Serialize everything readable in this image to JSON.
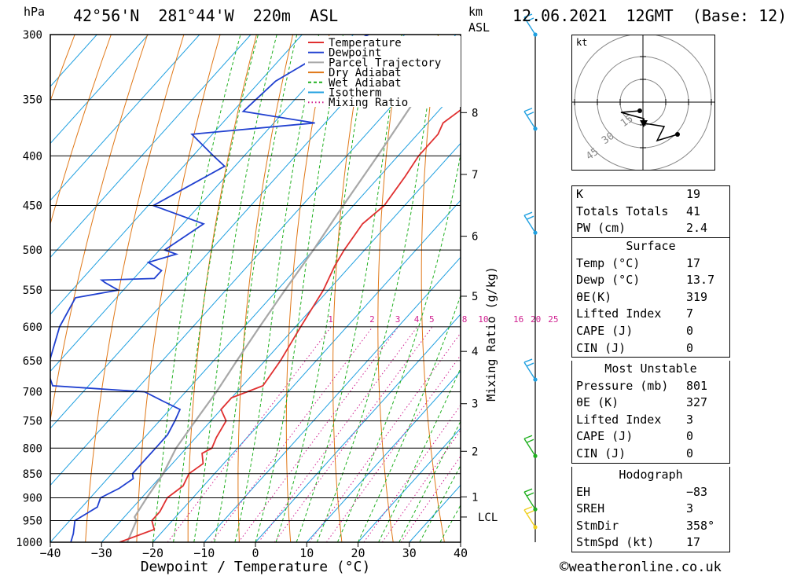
{
  "header": {
    "location": "42°56'N  281°44'W  220m  ASL",
    "datetime": "12.06.2021  12GMT  (Base: 12)",
    "unit_left": "hPa",
    "unit_right_1": "km",
    "unit_right_2": "ASL"
  },
  "footer": {
    "copyright_symbol": "©",
    "site": "weatheronline.co.uk"
  },
  "legend": {
    "items": [
      {
        "label": "Temperature",
        "color": "#e03030",
        "style": "solid"
      },
      {
        "label": "Dewpoint",
        "color": "#2040d0",
        "style": "solid"
      },
      {
        "label": "Parcel Trajectory",
        "color": "#a8a8a8",
        "style": "solid"
      },
      {
        "label": "Dry Adiabat",
        "color": "#e07818",
        "style": "solid"
      },
      {
        "label": "Wet Adiabat",
        "color": "#20b020",
        "style": "dashed"
      },
      {
        "label": "Isotherm",
        "color": "#20a0e0",
        "style": "solid"
      },
      {
        "label": "Mixing Ratio",
        "color": "#d02090",
        "style": "dotted"
      }
    ]
  },
  "chart_data": {
    "type": "skew-t",
    "xlabel": "Dewpoint / Temperature (°C)",
    "ylabel_left": "hPa",
    "ylabel_right": "Mixing Ratio (g/kg)",
    "x_ticks": [
      -40,
      -30,
      -20,
      -10,
      0,
      10,
      20,
      30,
      40
    ],
    "x_tick_labels": [
      "−40",
      "−30",
      "−20",
      "−10",
      "0",
      "10",
      "20",
      "30",
      "40"
    ],
    "xlim": [
      -40,
      40
    ],
    "pressure_ticks": [
      1000,
      950,
      900,
      850,
      800,
      750,
      700,
      650,
      600,
      550,
      500,
      450,
      400,
      350,
      300
    ],
    "ylim_hpa": [
      1000,
      300
    ],
    "log_pressure_axis": true,
    "km_ticks": [
      {
        "p": 898,
        "label": "1"
      },
      {
        "p": 806,
        "label": "2"
      },
      {
        "p": 720,
        "label": "3"
      },
      {
        "p": 636,
        "label": "4"
      },
      {
        "p": 558,
        "label": "5"
      },
      {
        "p": 484,
        "label": "6"
      },
      {
        "p": 418,
        "label": "7"
      },
      {
        "p": 361,
        "label": "8"
      }
    ],
    "lcl": {
      "p": 942,
      "label": "LCL"
    },
    "mixing_ratio_labels": [
      "1",
      "2",
      "3",
      "4",
      "5",
      "8",
      "10",
      "16",
      "20",
      "25"
    ],
    "temperature_profile": [
      {
        "p": 1000,
        "t": -26.5
      },
      {
        "p": 990,
        "t": -25
      },
      {
        "p": 970,
        "t": -22
      },
      {
        "p": 950,
        "t": -24
      },
      {
        "p": 930,
        "t": -24
      },
      {
        "p": 900,
        "t": -25
      },
      {
        "p": 875,
        "t": -24
      },
      {
        "p": 850,
        "t": -25
      },
      {
        "p": 830,
        "t": -24
      },
      {
        "p": 810,
        "t": -26
      },
      {
        "p": 800,
        "t": -25
      },
      {
        "p": 780,
        "t": -26
      },
      {
        "p": 750,
        "t": -27
      },
      {
        "p": 730,
        "t": -30
      },
      {
        "p": 710,
        "t": -30
      },
      {
        "p": 700,
        "t": -28
      },
      {
        "p": 690,
        "t": -26
      },
      {
        "p": 650,
        "t": -27
      },
      {
        "p": 600,
        "t": -29
      },
      {
        "p": 550,
        "t": -31
      },
      {
        "p": 520,
        "t": -33
      },
      {
        "p": 500,
        "t": -34
      },
      {
        "p": 470,
        "t": -35
      },
      {
        "p": 450,
        "t": -34
      },
      {
        "p": 420,
        "t": -35
      },
      {
        "p": 400,
        "t": -36
      },
      {
        "p": 380,
        "t": -36
      },
      {
        "p": 370,
        "t": -37
      },
      {
        "p": 360,
        "t": -36
      },
      {
        "p": 350,
        "t": -35
      },
      {
        "p": 330,
        "t": -36
      },
      {
        "p": 300,
        "t": -40
      }
    ],
    "dewpoint_profile": [
      {
        "p": 1000,
        "t": -36
      },
      {
        "p": 980,
        "t": -37
      },
      {
        "p": 950,
        "t": -39
      },
      {
        "p": 920,
        "t": -37
      },
      {
        "p": 900,
        "t": -38
      },
      {
        "p": 880,
        "t": -36
      },
      {
        "p": 860,
        "t": -35
      },
      {
        "p": 850,
        "t": -36
      },
      {
        "p": 820,
        "t": -36
      },
      {
        "p": 800,
        "t": -36
      },
      {
        "p": 775,
        "t": -36
      },
      {
        "p": 750,
        "t": -37
      },
      {
        "p": 730,
        "t": -38
      },
      {
        "p": 715,
        "t": -43
      },
      {
        "p": 700,
        "t": -48
      },
      {
        "p": 690,
        "t": -67
      },
      {
        "p": 670,
        "t": -70
      },
      {
        "p": 650,
        "t": -72
      },
      {
        "p": 600,
        "t": -76
      },
      {
        "p": 560,
        "t": -78
      },
      {
        "p": 550,
        "t": -71
      },
      {
        "p": 540,
        "t": -75
      },
      {
        "p": 537,
        "t": -76
      },
      {
        "p": 535,
        "t": -66
      },
      {
        "p": 525,
        "t": -66
      },
      {
        "p": 515,
        "t": -70
      },
      {
        "p": 505,
        "t": -66
      },
      {
        "p": 500,
        "t": -69
      },
      {
        "p": 470,
        "t": -66
      },
      {
        "p": 450,
        "t": -79
      },
      {
        "p": 410,
        "t": -72
      },
      {
        "p": 400,
        "t": -76
      },
      {
        "p": 380,
        "t": -84
      },
      {
        "p": 370,
        "t": -62
      },
      {
        "p": 360,
        "t": -78
      },
      {
        "p": 335,
        "t": -77
      },
      {
        "p": 320,
        "t": -74
      },
      {
        "p": 300,
        "t": -67
      }
    ],
    "parcel_profile": [
      {
        "p": 1000,
        "t": -25
      },
      {
        "p": 950,
        "t": -27
      },
      {
        "p": 942,
        "t": -28
      },
      {
        "p": 900,
        "t": -29
      },
      {
        "p": 850,
        "t": -30
      },
      {
        "p": 800,
        "t": -32
      },
      {
        "p": 750,
        "t": -33
      },
      {
        "p": 700,
        "t": -34
      },
      {
        "p": 650,
        "t": -35.5
      },
      {
        "p": 600,
        "t": -37
      },
      {
        "p": 550,
        "t": -38.5
      },
      {
        "p": 500,
        "t": -40
      },
      {
        "p": 450,
        "t": -42
      },
      {
        "p": 400,
        "t": -44
      },
      {
        "p": 350,
        "t": -46.5
      },
      {
        "p": 310,
        "t": -49
      }
    ],
    "wind_barbs": [
      {
        "p": 300,
        "color": "#20a0e0"
      },
      {
        "p": 375,
        "color": "#20a0e0"
      },
      {
        "p": 480,
        "color": "#20a0e0"
      },
      {
        "p": 680,
        "color": "#20a0e0"
      },
      {
        "p": 815,
        "color": "#20b020"
      },
      {
        "p": 925,
        "color": "#20b020"
      },
      {
        "p": 965,
        "color": "#f0d020"
      }
    ]
  },
  "hodograph": {
    "unit": "kt",
    "ring_labels": [
      "15",
      "30",
      "45"
    ]
  },
  "indices": {
    "general": [
      {
        "name": "K",
        "value": "19"
      },
      {
        "name": "Totals Totals",
        "value": "41"
      },
      {
        "name": "PW (cm)",
        "value": "2.4"
      }
    ],
    "surface": {
      "title": "Surface",
      "rows": [
        {
          "name": "Temp (°C)",
          "value": "17"
        },
        {
          "name": "Dewp (°C)",
          "value": "13.7"
        },
        {
          "name": "θE(K)",
          "value": "319"
        },
        {
          "name": "Lifted Index",
          "value": "7"
        },
        {
          "name": "CAPE (J)",
          "value": "0"
        },
        {
          "name": "CIN (J)",
          "value": "0"
        }
      ]
    },
    "most_unstable": {
      "title": "Most Unstable",
      "rows": [
        {
          "name": "Pressure (mb)",
          "value": "801"
        },
        {
          "name": "θE (K)",
          "value": "327"
        },
        {
          "name": "Lifted Index",
          "value": "3"
        },
        {
          "name": "CAPE (J)",
          "value": "0"
        },
        {
          "name": "CIN (J)",
          "value": "0"
        }
      ]
    },
    "hodograph_box": {
      "title": "Hodograph",
      "rows": [
        {
          "name": "EH",
          "value": "−83"
        },
        {
          "name": "SREH",
          "value": "3"
        },
        {
          "name": "StmDir",
          "value": "358°"
        },
        {
          "name": "StmSpd (kt)",
          "value": "17"
        }
      ]
    }
  }
}
